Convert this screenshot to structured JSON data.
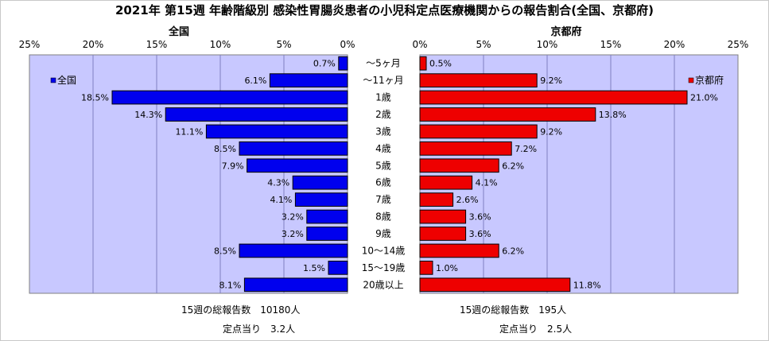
{
  "title": "2021年 第15週 年齢階級別 感染性胃腸炎患者の小児科定点医療機関からの報告割合(全国、京都府)",
  "categories": [
    "～5ヶ月",
    "～11ヶ月",
    "1歳",
    "2歳",
    "3歳",
    "4歳",
    "5歳",
    "6歳",
    "7歳",
    "8歳",
    "9歳",
    "10～14歳",
    "15～19歳",
    "20歳以上"
  ],
  "colors": {
    "national": "#0000ee",
    "kyoto": "#ee0000",
    "plot_bg": "#c8c8ff",
    "grid": "#8080c0"
  },
  "chart_data": [
    {
      "type": "bar",
      "title": "全国",
      "orientation": "horizontal",
      "direction": "right-to-left",
      "legend": "全国",
      "legend_position": "top-left",
      "xlim": [
        0,
        25
      ],
      "ticks": [
        "25%",
        "20%",
        "15%",
        "10%",
        "5%",
        "0%"
      ],
      "values": [
        0.7,
        6.1,
        18.5,
        14.3,
        11.1,
        8.5,
        7.9,
        4.3,
        4.1,
        3.2,
        3.2,
        8.5,
        1.5,
        8.1
      ],
      "labels": [
        "0.7%",
        "6.1%",
        "18.5%",
        "14.3%",
        "11.1%",
        "8.5%",
        "7.9%",
        "4.3%",
        "4.1%",
        "3.2%",
        "3.2%",
        "8.5%",
        "1.5%",
        "8.1%"
      ],
      "grid": true
    },
    {
      "type": "bar",
      "title": "京都府",
      "orientation": "horizontal",
      "direction": "left-to-right",
      "legend": "京都府",
      "legend_position": "top-right",
      "xlim": [
        0,
        25
      ],
      "ticks": [
        "0%",
        "5%",
        "10%",
        "15%",
        "20%",
        "25%"
      ],
      "values": [
        0.5,
        9.2,
        21.0,
        13.8,
        9.2,
        7.2,
        6.2,
        4.1,
        2.6,
        3.6,
        3.6,
        6.2,
        1.0,
        11.8
      ],
      "labels": [
        "0.5%",
        "9.2%",
        "21.0%",
        "13.8%",
        "9.2%",
        "7.2%",
        "6.2%",
        "4.1%",
        "2.6%",
        "3.6%",
        "3.6%",
        "6.2%",
        "1.0%",
        "11.8%"
      ],
      "grid": true
    }
  ],
  "footer": {
    "national_total": "15週の総報告数　10180人",
    "national_per": "定点当り　3.2人",
    "kyoto_total": "15週の総報告数　195人",
    "kyoto_per": "定点当り　2.5人"
  }
}
